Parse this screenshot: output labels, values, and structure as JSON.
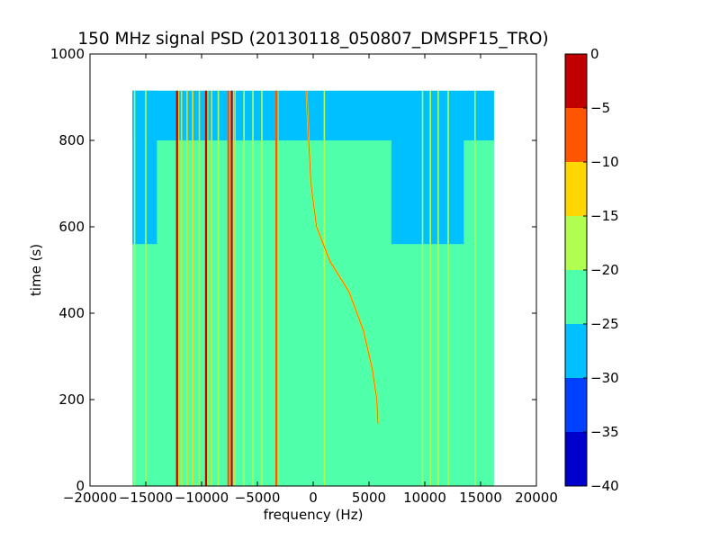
{
  "chart_data": {
    "type": "heatmap",
    "title": "150 MHz signal PSD (20130118_050807_DMSPF15_TRO)",
    "xlabel": "frequency (Hz)",
    "ylabel": "time (s)",
    "xlim": [
      -20000,
      20000
    ],
    "ylim": [
      0,
      1000
    ],
    "xticks": [
      -20000,
      -15000,
      -10000,
      -5000,
      0,
      5000,
      10000,
      15000,
      20000
    ],
    "xtick_labels": [
      "−20000",
      "−15000",
      "−10000",
      "−5000",
      "0",
      "5000",
      "10000",
      "15000",
      "20000"
    ],
    "yticks": [
      0,
      200,
      400,
      600,
      800,
      1000
    ],
    "ytick_labels": [
      "0",
      "200",
      "400",
      "600",
      "800",
      "1000"
    ],
    "data_extent": {
      "freq_min": -16200,
      "freq_max": 16200,
      "time_min": 0,
      "time_max": 915
    },
    "colorbar": {
      "levels": [
        -40,
        -35,
        -30,
        -25,
        -20,
        -15,
        -10,
        -5,
        0
      ],
      "tick_labels": [
        "−40",
        "−35",
        "−30",
        "−25",
        "−20",
        "−15",
        "−10",
        "−5",
        "0"
      ],
      "colors": [
        "#0000cd",
        "#0040ff",
        "#00c0ff",
        "#50ffaa",
        "#b0ff50",
        "#ffd700",
        "#ff5500",
        "#c00000"
      ]
    },
    "background_level_db": -22.5,
    "quiet_region": [
      {
        "freq_min": -16200,
        "freq_max": 16200,
        "time_min": 800,
        "time_max": 915,
        "level_db": -27.5
      },
      {
        "freq_min": -16200,
        "freq_max": -14000,
        "time_min": 560,
        "time_max": 915,
        "level_db": -27.5
      },
      {
        "freq_min": 7000,
        "freq_max": 13500,
        "time_min": 560,
        "time_max": 800,
        "level_db": -27.5
      }
    ],
    "carrier_lines": [
      {
        "freq": -16000,
        "level_db": -17.5
      },
      {
        "freq": -15000,
        "level_db": -17.5
      },
      {
        "freq": -12200,
        "level_db": -2.5
      },
      {
        "freq": -11800,
        "level_db": -12.5
      },
      {
        "freq": -11300,
        "level_db": -12.5
      },
      {
        "freq": -10800,
        "level_db": -12.5
      },
      {
        "freq": -10200,
        "level_db": -12.5
      },
      {
        "freq": -9600,
        "level_db": -2.5
      },
      {
        "freq": -9100,
        "level_db": -12.5
      },
      {
        "freq": -8500,
        "level_db": -17.5
      },
      {
        "freq": -7600,
        "level_db": -7.5
      },
      {
        "freq": -7300,
        "level_db": -2.5
      },
      {
        "freq": -7000,
        "level_db": -12.5
      },
      {
        "freq": -6200,
        "level_db": -17.5
      },
      {
        "freq": -5400,
        "level_db": -17.5
      },
      {
        "freq": -4600,
        "level_db": -17.5
      },
      {
        "freq": -3300,
        "level_db": -7.5
      },
      {
        "freq": 1000,
        "level_db": -17.5
      },
      {
        "freq": 9800,
        "level_db": -17.5
      },
      {
        "freq": 10500,
        "level_db": -17.5
      },
      {
        "freq": 11200,
        "level_db": -17.5
      },
      {
        "freq": 12100,
        "level_db": -17.5
      },
      {
        "freq": 14500,
        "level_db": -17.5
      }
    ],
    "doppler_trace": {
      "level_db": -12.5,
      "points": [
        [
          -600,
          915
        ],
        [
          -400,
          800
        ],
        [
          -200,
          700
        ],
        [
          300,
          600
        ],
        [
          1500,
          520
        ],
        [
          3200,
          450
        ],
        [
          4500,
          360
        ],
        [
          5300,
          270
        ],
        [
          5700,
          200
        ],
        [
          5800,
          145
        ]
      ]
    }
  }
}
